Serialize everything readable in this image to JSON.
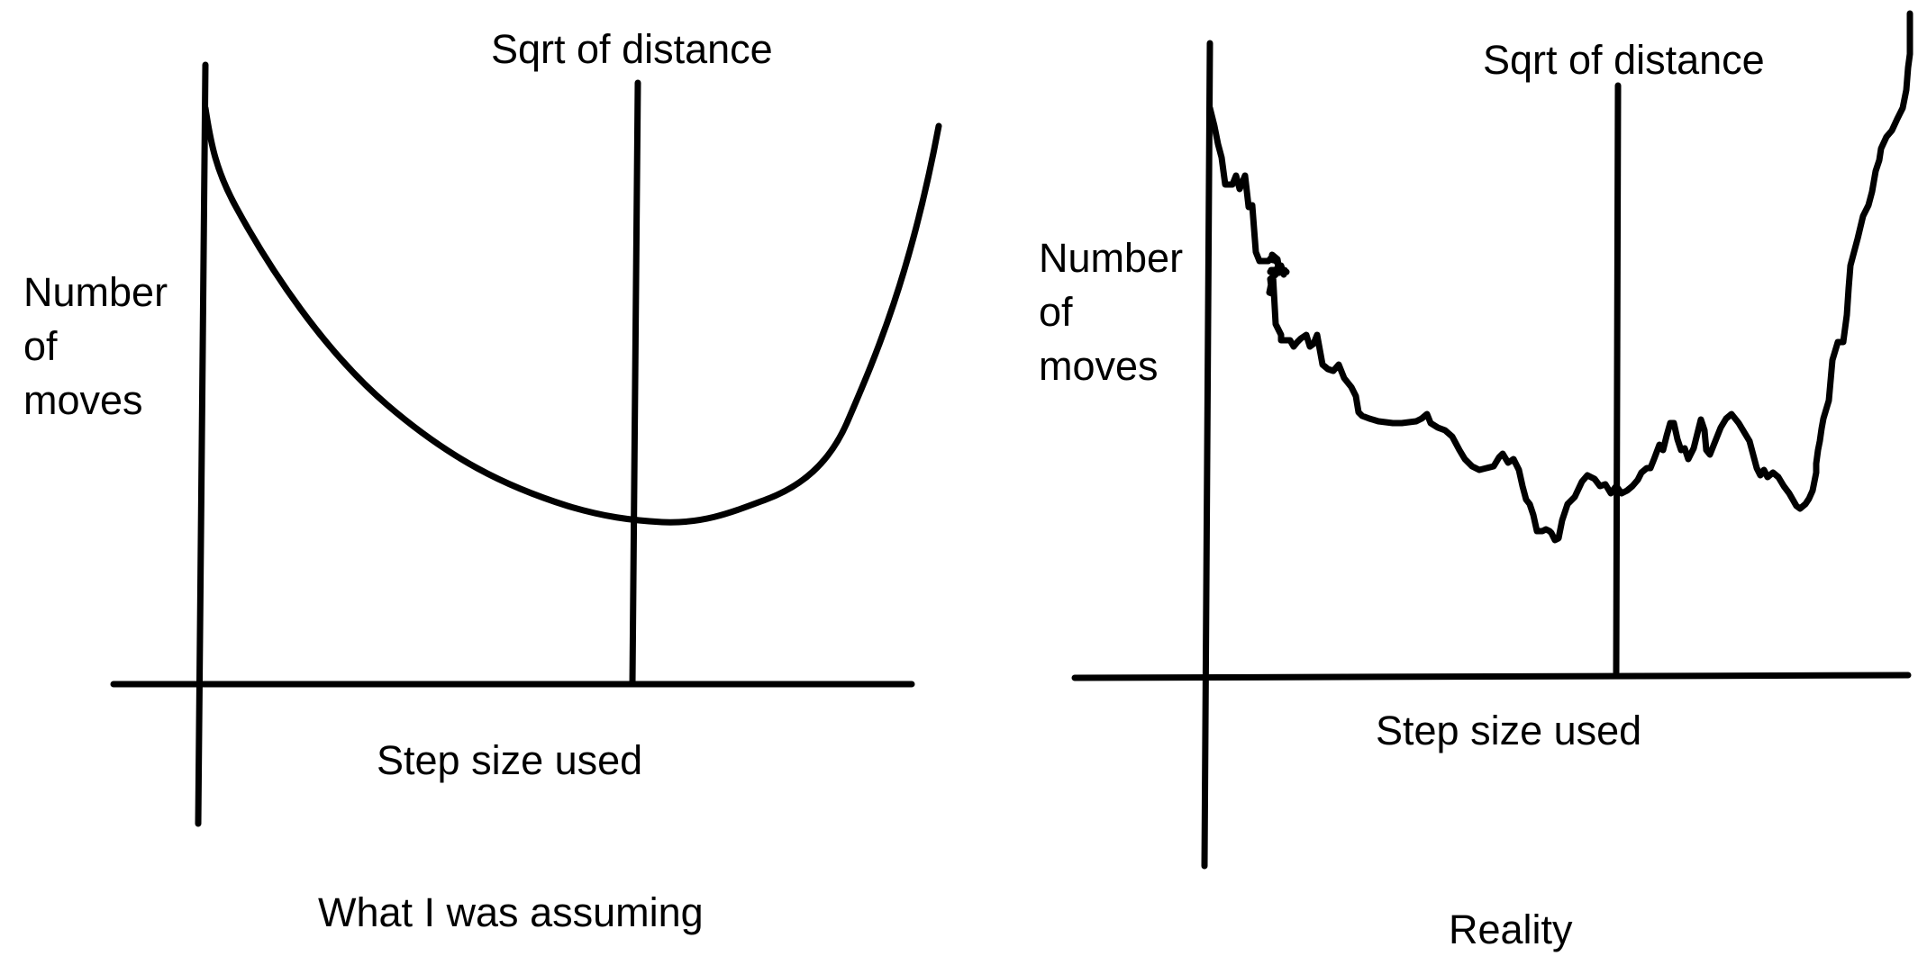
{
  "left_panel": {
    "marker_label": "Sqrt of distance",
    "y_label_lines": [
      "Number",
      "of",
      "moves"
    ],
    "x_label": "Step size used",
    "caption": "What I was assuming"
  },
  "right_panel": {
    "marker_label": "Sqrt of distance",
    "y_label_lines": [
      "Number",
      "of",
      "moves"
    ],
    "x_label": "Step size used",
    "caption": "Reality"
  },
  "colors": {
    "ink": "#000000",
    "background": "#ffffff"
  }
}
